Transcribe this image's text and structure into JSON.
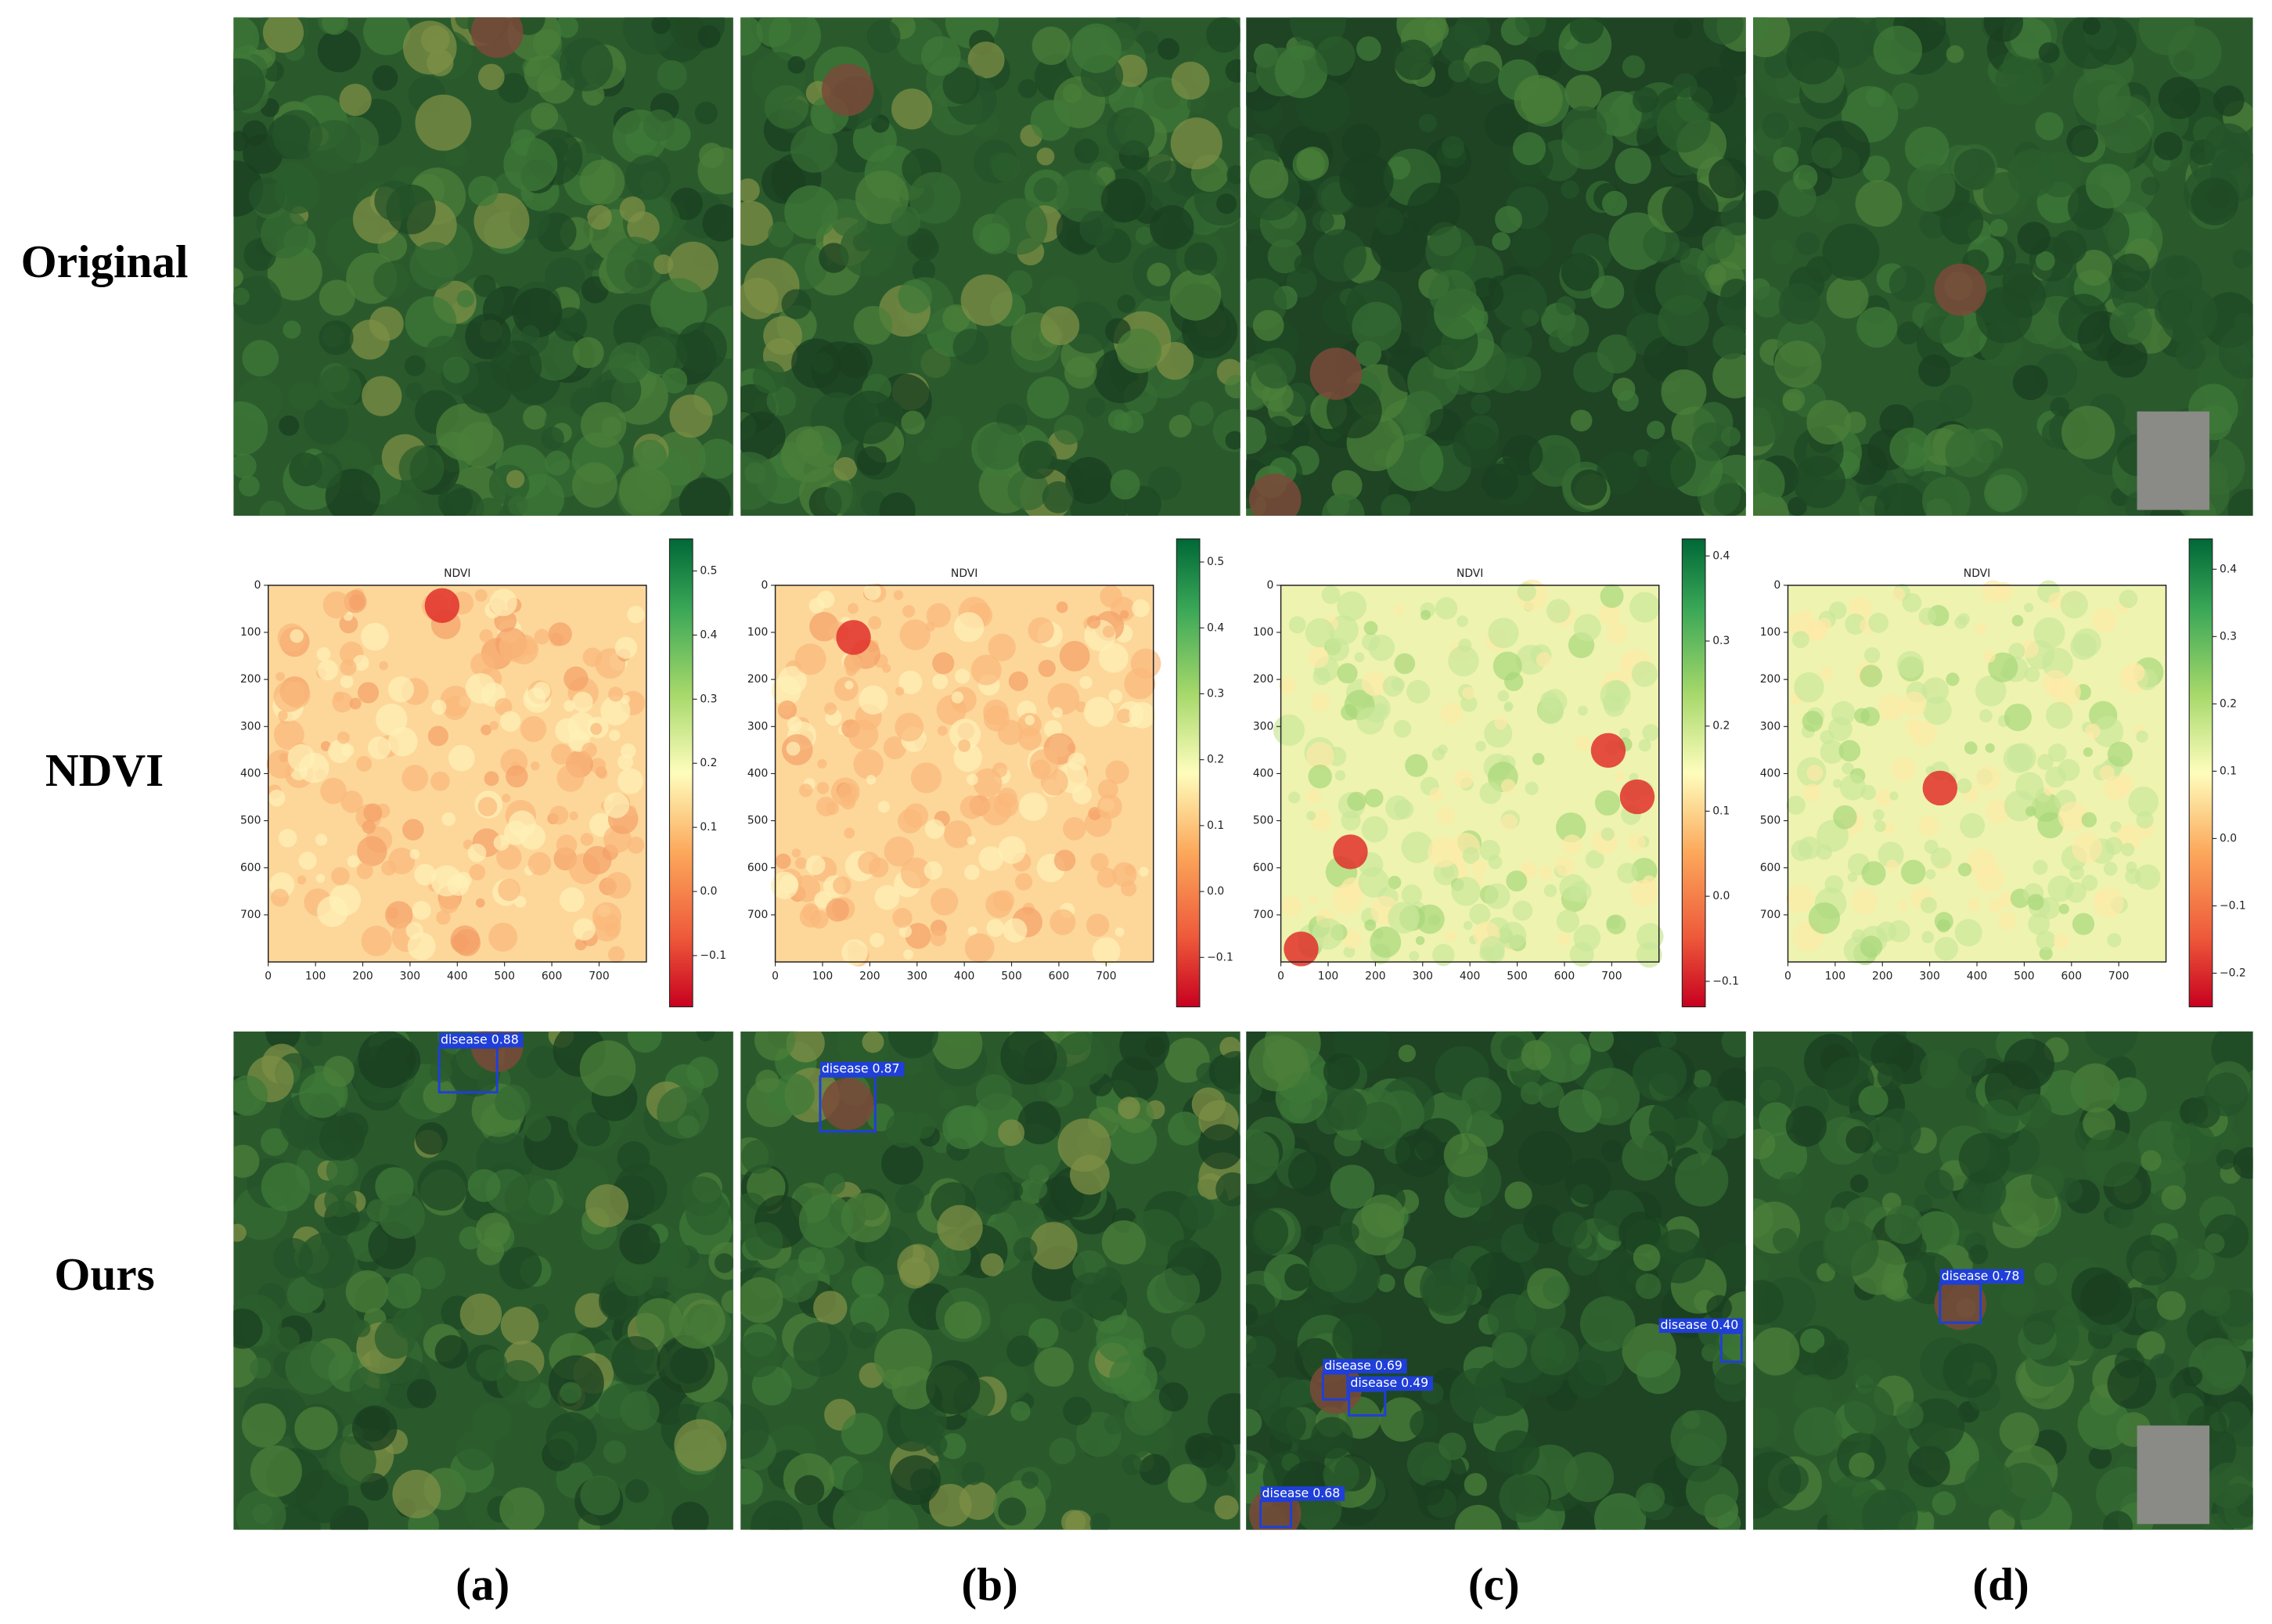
{
  "row_labels": [
    "Original",
    "NDVI",
    "Ours"
  ],
  "column_labels": [
    "(a)",
    "(b)",
    "(c)",
    "(d)"
  ],
  "ndvi_panels": [
    {
      "title": "NDVI",
      "xlim": [
        0,
        800
      ],
      "xticks": [
        0,
        100,
        200,
        300,
        400,
        500,
        600,
        700
      ],
      "ylim": [
        0,
        800
      ],
      "yticks": [
        0,
        100,
        200,
        300,
        400,
        500,
        600,
        700
      ],
      "colorbar": {
        "clim": [
          -0.18,
          0.55
        ],
        "ticks": [
          {
            "value": -0.1,
            "label": "−0.1"
          },
          {
            "value": 0,
            "label": "0.0"
          },
          0.1,
          0.2,
          0.3,
          0.4,
          0.5
        ]
      }
    },
    {
      "title": "NDVI",
      "xlim": [
        0,
        800
      ],
      "xticks": [
        0,
        100,
        200,
        300,
        400,
        500,
        600,
        700
      ],
      "ylim": [
        0,
        800
      ],
      "yticks": [
        0,
        100,
        200,
        300,
        400,
        500,
        600,
        700
      ],
      "colorbar": {
        "clim": [
          -0.175,
          0.535
        ],
        "ticks": [
          {
            "value": -0.1,
            "label": "−0.1"
          },
          {
            "value": 0,
            "label": "0.0"
          },
          0.1,
          0.2,
          0.3,
          0.4,
          0.5
        ]
      }
    },
    {
      "title": "NDVI",
      "xlim": [
        0,
        800
      ],
      "xticks": [
        0,
        100,
        200,
        300,
        400,
        500,
        600,
        700
      ],
      "ylim": [
        0,
        800
      ],
      "yticks": [
        0,
        100,
        200,
        300,
        400,
        500,
        600,
        700
      ],
      "colorbar": {
        "clim": [
          -0.13,
          0.42
        ],
        "ticks": [
          {
            "value": -0.1,
            "label": "−0.1"
          },
          {
            "value": 0,
            "label": "0.0"
          },
          0.1,
          0.2,
          0.3,
          0.4
        ]
      }
    },
    {
      "title": "NDVI",
      "xlim": [
        0,
        800
      ],
      "xticks": [
        0,
        100,
        200,
        300,
        400,
        500,
        600,
        700
      ],
      "ylim": [
        0,
        800
      ],
      "yticks": [
        0,
        100,
        200,
        300,
        400,
        500,
        600,
        700
      ],
      "colorbar": {
        "clim": [
          -0.25,
          0.445
        ],
        "ticks": [
          {
            "value": -0.2,
            "label": "−0.2"
          },
          {
            "value": -0.1,
            "label": "−0.1"
          },
          {
            "value": 0,
            "label": "0.0"
          },
          0.1,
          0.2,
          0.3,
          0.4
        ]
      }
    }
  ],
  "detections": [
    [
      "disease 0.88"
    ],
    [
      "disease 0.87"
    ],
    [
      "disease 0.69",
      "disease 0.49",
      "disease 0.40",
      "disease 0.68"
    ],
    [
      "disease 0.78"
    ]
  ]
}
